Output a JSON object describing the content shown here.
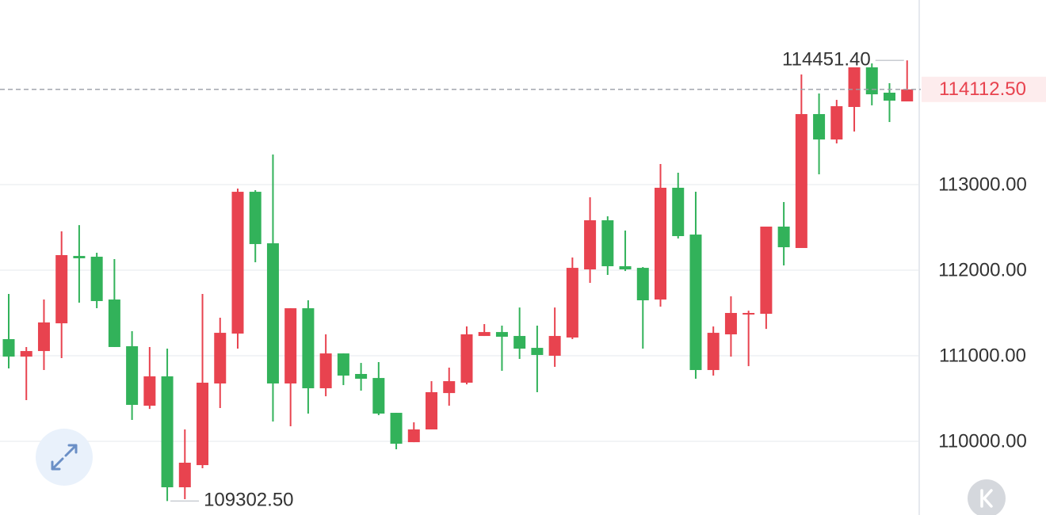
{
  "chart_data": {
    "type": "candlestick",
    "up_color": "#e8434f",
    "down_color": "#32b25a",
    "grid": true,
    "ylim": [
      109139,
      115157
    ],
    "yticks": [
      {
        "value": 110000,
        "label": "110000.00"
      },
      {
        "value": 111000,
        "label": "111000.00"
      },
      {
        "value": 112000,
        "label": "112000.00"
      },
      {
        "value": 113000,
        "label": "113000.00"
      }
    ],
    "open": [
      111194,
      110990,
      111055,
      111379,
      112166,
      112157,
      111657,
      111111,
      110416,
      110759,
      109463,
      109722,
      110676,
      111259,
      112916,
      112314,
      110676,
      111555,
      110620,
      111027,
      110787,
      110740,
      110333,
      109990,
      110139,
      110564,
      110685,
      111231,
      111277,
      111231,
      111092,
      111000,
      111213,
      112009,
      112583,
      112046,
      112027,
      111657,
      112963,
      112416,
      110833,
      111250,
      111490,
      111490,
      112509,
      112259,
      113824,
      113527,
      113907,
      114370,
      114074,
      113972
    ],
    "high": [
      111722,
      111102,
      111657,
      112453,
      112527,
      112203,
      112129,
      111287,
      111102,
      111083,
      110139,
      111722,
      111444,
      112953,
      112935,
      113352,
      111555,
      111648,
      111250,
      111027,
      110916,
      110926,
      110333,
      110222,
      110703,
      110861,
      111342,
      111370,
      111352,
      111564,
      111352,
      111564,
      112148,
      112852,
      112629,
      112463,
      112037,
      113240,
      113139,
      112916,
      111342,
      111694,
      111527,
      112509,
      112796,
      114287,
      114064,
      113990,
      114370,
      114416,
      114185,
      114451.4
    ],
    "low": [
      110852,
      110481,
      110833,
      110972,
      111620,
      111555,
      111102,
      110250,
      110379,
      109302.5,
      109324,
      109685,
      110389,
      111083,
      112092,
      110231,
      110176,
      110324,
      110527,
      110657,
      110592,
      110305,
      109907,
      109990,
      110139,
      110416,
      110666,
      111231,
      110824,
      110963,
      110574,
      110870,
      111194,
      111852,
      111944,
      111990,
      111083,
      111574,
      112370,
      110731,
      110768,
      110990,
      110879,
      111314,
      112055,
      112259,
      113120,
      113481,
      113620,
      113926,
      113731,
      113972
    ],
    "close": [
      110990,
      111055,
      111389,
      112176,
      112139,
      111639,
      111102,
      110426,
      110759,
      109463,
      109750,
      110685,
      111268,
      112916,
      112305,
      110676,
      111555,
      110620,
      111027,
      110768,
      110731,
      110324,
      109972,
      110139,
      110574,
      110703,
      111250,
      111277,
      111222,
      111083,
      111009,
      111231,
      112027,
      112583,
      112046,
      112009,
      111648,
      112963,
      112398,
      110833,
      111268,
      111500,
      111500,
      112509,
      112268,
      113824,
      113527,
      113916,
      114370,
      114055,
      113981,
      114112.5
    ],
    "annotations": {
      "high": "114451.40",
      "low": "109302.50",
      "last": "114112.50"
    }
  }
}
